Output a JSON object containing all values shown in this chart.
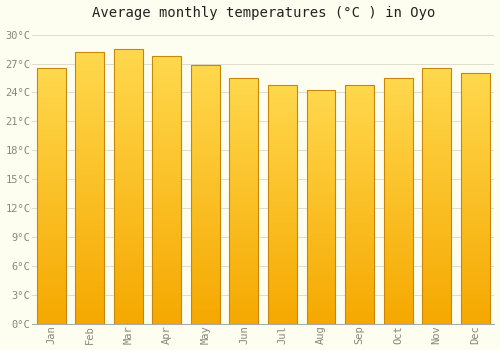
{
  "title": "Average monthly temperatures (°C ) in Oyo",
  "months": [
    "Jan",
    "Feb",
    "Mar",
    "Apr",
    "May",
    "Jun",
    "Jul",
    "Aug",
    "Sep",
    "Oct",
    "Nov",
    "Dec"
  ],
  "temperatures": [
    26.5,
    28.2,
    28.5,
    27.8,
    26.8,
    25.5,
    24.8,
    24.3,
    24.8,
    25.5,
    26.5,
    26.0
  ],
  "bar_color_bottom": "#F5A800",
  "bar_color_top": "#FFD84D",
  "bar_edge_color": "#C8860A",
  "background_color": "#FEFEF0",
  "grid_color": "#DDDDCC",
  "text_color": "#888877",
  "title_color": "#222222",
  "ylim": [
    0,
    31
  ],
  "yticks": [
    0,
    3,
    6,
    9,
    12,
    15,
    18,
    21,
    24,
    27,
    30
  ],
  "ytick_labels": [
    "0°C",
    "3°C",
    "6°C",
    "9°C",
    "12°C",
    "15°C",
    "18°C",
    "21°C",
    "24°C",
    "27°C",
    "30°C"
  ],
  "title_fontsize": 10,
  "tick_fontsize": 7.5,
  "font_family": "monospace",
  "bar_width": 0.75
}
